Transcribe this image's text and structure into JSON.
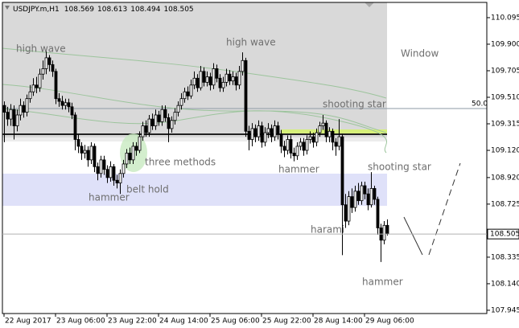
{
  "chart_data": {
    "type": "candlestick",
    "symbol": "USDJPY.m,H1",
    "categories": [
      "22 Aug 2017",
      null,
      null,
      null,
      null,
      null,
      null,
      null,
      null,
      null,
      null,
      null,
      null,
      null,
      null,
      null,
      "23 Aug 06:00",
      null,
      null,
      null,
      null,
      null,
      null,
      null,
      null,
      null,
      null,
      null,
      null,
      null,
      null,
      null,
      "23 Aug 22:00",
      null,
      null,
      null,
      null,
      null,
      null,
      null,
      null,
      null,
      null,
      null,
      null,
      null,
      null,
      null,
      "24 Aug 14:00",
      null,
      null,
      null,
      null,
      null,
      null,
      null,
      null,
      null,
      null,
      null,
      null,
      null,
      null,
      null,
      "25 Aug 06:00",
      null,
      null,
      null,
      null,
      null,
      null,
      null,
      null,
      null,
      null,
      null,
      null,
      null,
      null,
      null,
      "25 Aug 22:00",
      null,
      null,
      null,
      null,
      null,
      null,
      null,
      null,
      null,
      null,
      null,
      null,
      null,
      null,
      null,
      "28 Aug 14:00",
      null,
      null,
      null,
      null,
      null,
      null,
      null,
      null,
      null,
      null,
      null,
      null,
      null,
      null,
      null,
      "29 Aug 06:00",
      null,
      null,
      null,
      null,
      null,
      null,
      null
    ],
    "open": [
      109.45,
      109.4,
      109.35,
      109.42,
      109.3,
      109.38,
      109.45,
      109.4,
      109.5,
      109.55,
      109.6,
      109.58,
      109.68,
      109.72,
      109.8,
      109.75,
      109.7,
      109.5,
      109.48,
      109.45,
      109.47,
      109.44,
      109.38,
      109.2,
      109.15,
      109.1,
      109.12,
      109.05,
      109.15,
      109.0,
      108.95,
      109.05,
      108.98,
      108.92,
      109.0,
      108.9,
      108.88,
      108.95,
      109.02,
      109.1,
      109.05,
      109.15,
      109.12,
      109.22,
      109.3,
      109.25,
      109.35,
      109.3,
      109.38,
      109.33,
      109.42,
      109.36,
      109.28,
      109.34,
      109.4,
      109.45,
      109.5,
      109.55,
      109.52,
      109.6,
      109.65,
      109.58,
      109.7,
      109.62,
      109.66,
      109.6,
      109.72,
      109.65,
      109.58,
      109.62,
      109.68,
      109.63,
      109.66,
      109.6,
      109.7,
      109.78,
      109.26,
      109.2,
      109.28,
      109.22,
      109.3,
      109.18,
      109.25,
      109.28,
      109.22,
      109.3,
      109.24,
      109.15,
      109.12,
      109.2,
      109.1,
      109.08,
      109.15,
      109.18,
      109.12,
      109.2,
      109.22,
      109.18,
      109.25,
      109.3,
      109.32,
      109.22,
      109.26,
      109.18,
      109.15,
      109.22,
      108.72,
      108.6,
      108.78,
      108.7,
      108.82,
      108.75,
      108.86,
      108.8,
      108.72,
      108.84,
      108.76,
      108.55,
      108.46,
      108.569
    ],
    "high": [
      109.48,
      109.44,
      109.46,
      109.45,
      109.42,
      109.5,
      109.48,
      109.53,
      109.6,
      109.65,
      109.66,
      109.72,
      109.78,
      109.85,
      109.82,
      109.78,
      109.72,
      109.54,
      109.52,
      109.5,
      109.5,
      109.47,
      109.4,
      109.24,
      109.18,
      109.16,
      109.15,
      109.18,
      109.17,
      109.03,
      109.08,
      109.08,
      109.01,
      109.04,
      109.02,
      108.94,
      108.98,
      109.05,
      109.13,
      109.14,
      109.18,
      109.18,
      109.26,
      109.33,
      109.34,
      109.38,
      109.39,
      109.42,
      109.41,
      109.45,
      109.45,
      109.39,
      109.37,
      109.43,
      109.48,
      109.54,
      109.58,
      109.59,
      109.64,
      109.7,
      109.68,
      109.74,
      109.73,
      109.7,
      109.69,
      109.76,
      109.75,
      109.68,
      109.66,
      109.72,
      109.71,
      109.7,
      109.69,
      109.74,
      109.84,
      109.8,
      109.3,
      109.32,
      109.31,
      109.34,
      109.33,
      109.29,
      109.32,
      109.31,
      109.34,
      109.33,
      109.27,
      109.19,
      109.23,
      109.23,
      109.14,
      109.18,
      109.21,
      109.21,
      109.23,
      109.26,
      109.25,
      109.28,
      109.33,
      109.38,
      109.34,
      109.29,
      109.28,
      109.21,
      109.35,
      109.24,
      108.8,
      108.82,
      108.84,
      108.86,
      108.88,
      108.89,
      108.89,
      108.84,
      108.96,
      108.86,
      108.78,
      108.58,
      108.6,
      108.613
    ],
    "low": [
      109.18,
      109.3,
      109.3,
      109.2,
      109.26,
      109.34,
      109.36,
      109.37,
      109.47,
      109.52,
      109.54,
      109.55,
      109.64,
      109.68,
      109.7,
      109.66,
      109.46,
      109.44,
      109.42,
      109.42,
      109.4,
      109.35,
      109.12,
      109.1,
      109.05,
      109.06,
      109.0,
      109.02,
      108.96,
      108.9,
      108.92,
      108.94,
      108.88,
      108.89,
      108.86,
      108.84,
      108.8,
      108.92,
      108.99,
      109.02,
      109.02,
      109.08,
      109.1,
      109.19,
      109.22,
      109.22,
      109.27,
      109.27,
      109.3,
      109.3,
      109.33,
      109.18,
      109.25,
      109.31,
      109.37,
      109.42,
      109.47,
      109.49,
      109.5,
      109.57,
      109.55,
      109.56,
      109.59,
      109.59,
      109.56,
      109.57,
      109.62,
      109.55,
      109.55,
      109.59,
      109.6,
      109.6,
      109.56,
      109.57,
      109.67,
      109.22,
      109.12,
      109.15,
      109.18,
      109.19,
      109.14,
      109.15,
      109.21,
      109.18,
      109.19,
      109.2,
      109.1,
      109.07,
      109.09,
      109.06,
      109.04,
      109.05,
      109.12,
      109.08,
      109.09,
      109.17,
      109.14,
      109.15,
      109.22,
      109.27,
      109.18,
      109.18,
      109.12,
      109.08,
      109.12,
      108.35,
      108.55,
      108.57,
      108.66,
      108.67,
      108.72,
      108.72,
      108.76,
      108.68,
      108.7,
      108.72,
      108.5,
      108.3,
      108.43,
      108.494
    ],
    "close": [
      109.4,
      109.35,
      109.42,
      109.3,
      109.38,
      109.45,
      109.4,
      109.5,
      109.55,
      109.6,
      109.58,
      109.68,
      109.72,
      109.8,
      109.75,
      109.7,
      109.5,
      109.48,
      109.45,
      109.47,
      109.44,
      109.38,
      109.2,
      109.15,
      109.1,
      109.12,
      109.05,
      109.15,
      109.0,
      108.95,
      109.05,
      108.98,
      108.92,
      109.0,
      108.9,
      108.88,
      108.95,
      109.02,
      109.1,
      109.05,
      109.15,
      109.12,
      109.22,
      109.3,
      109.25,
      109.35,
      109.3,
      109.38,
      109.33,
      109.42,
      109.36,
      109.28,
      109.34,
      109.4,
      109.45,
      109.5,
      109.55,
      109.52,
      109.6,
      109.65,
      109.58,
      109.7,
      109.62,
      109.66,
      109.6,
      109.72,
      109.65,
      109.58,
      109.62,
      109.68,
      109.63,
      109.66,
      109.6,
      109.7,
      109.78,
      109.26,
      109.2,
      109.28,
      109.22,
      109.3,
      109.18,
      109.25,
      109.28,
      109.22,
      109.3,
      109.24,
      109.15,
      109.12,
      109.2,
      109.1,
      109.08,
      109.15,
      109.18,
      109.12,
      109.2,
      109.22,
      109.18,
      109.25,
      109.3,
      109.32,
      109.22,
      109.26,
      109.18,
      109.15,
      109.22,
      108.72,
      108.6,
      108.78,
      108.7,
      108.82,
      108.75,
      108.86,
      108.8,
      108.72,
      108.84,
      108.76,
      108.55,
      108.46,
      108.569,
      108.505
    ],
    "ylim": [
      107.921,
      110.207
    ],
    "yticks": [
      110.095,
      {
        "value": 109.9,
        "label": "109.900"
      },
      109.705,
      {
        "value": 109.51,
        "label": "109.510"
      },
      109.315,
      {
        "value": 109.12,
        "label": "109.120"
      },
      {
        "value": 108.92,
        "label": "108.920"
      },
      108.725,
      {
        "value": 108.335,
        "label": "108.335"
      },
      {
        "value": 108.14,
        "label": "108.140"
      },
      107.945
    ],
    "annotations": [
      "high wave",
      "high wave",
      "Window",
      "shooting star",
      "50.0",
      "three methods",
      "hammer",
      "shooting star",
      "belt hold",
      "hammer",
      "harami",
      "hammer"
    ]
  }
}
